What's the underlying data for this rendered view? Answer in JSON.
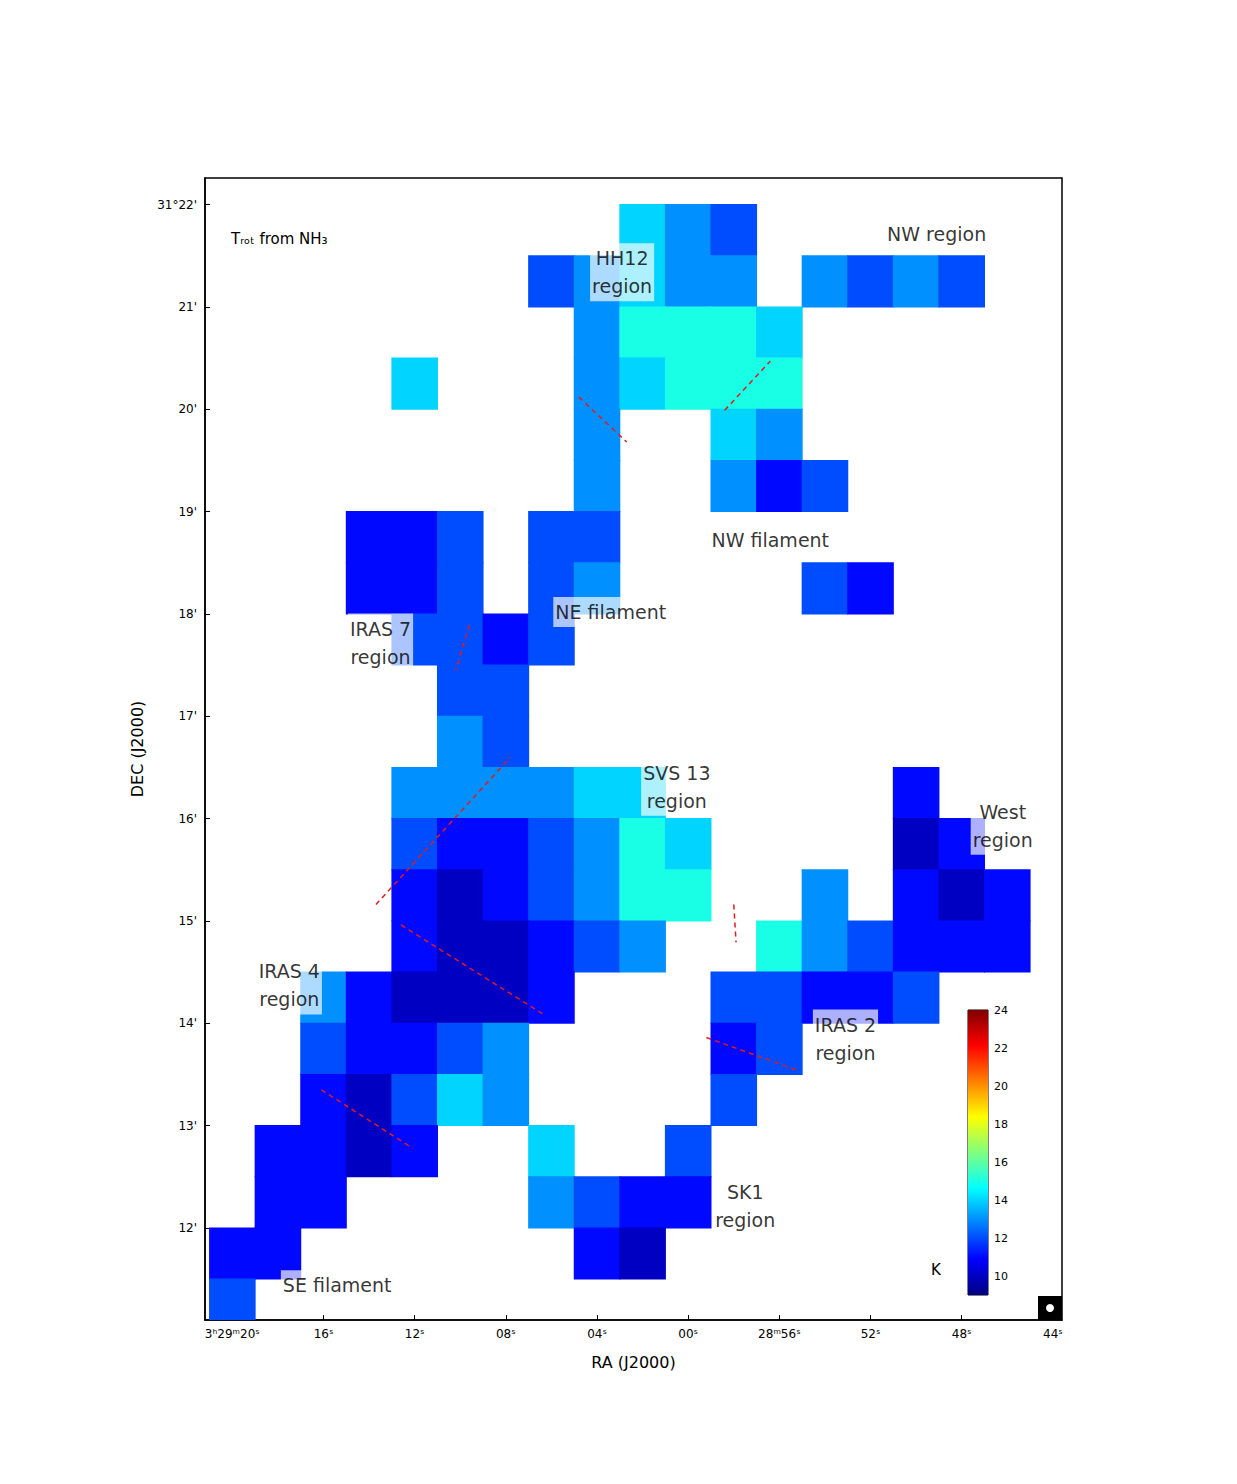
{
  "chart_data": {
    "type": "heatmap",
    "title": "Tᵣₒₜ from NH₃",
    "x_label": "RA (J2000)",
    "y_label": "DEC (J2000)",
    "xlim": [
      81.2,
      43.6
    ],
    "ylim": [
      11.1,
      22.26
    ],
    "xticks": [
      {
        "value": 80,
        "label": "3ʰ29ᵐ20ˢ"
      },
      {
        "value": 76,
        "label": "16ˢ"
      },
      {
        "value": 72,
        "label": "12ˢ"
      },
      {
        "value": 68,
        "label": "08ˢ"
      },
      {
        "value": 64,
        "label": "04ˢ"
      },
      {
        "value": 60,
        "label": "00ˢ"
      },
      {
        "value": 56,
        "label": "28ᵐ56ˢ"
      },
      {
        "value": 52,
        "label": "52ˢ"
      },
      {
        "value": 48,
        "label": "48ˢ"
      },
      {
        "value": 44,
        "label": "44ˢ"
      }
    ],
    "yticks": [
      {
        "value": 12,
        "label": "12'"
      },
      {
        "value": 13,
        "label": "13'"
      },
      {
        "value": 14,
        "label": "14'"
      },
      {
        "value": 15,
        "label": "15'"
      },
      {
        "value": 16,
        "label": "16'"
      },
      {
        "value": 17,
        "label": "17'"
      },
      {
        "value": 18,
        "label": "18'"
      },
      {
        "value": 19,
        "label": "19'"
      },
      {
        "value": 20,
        "label": "20'"
      },
      {
        "value": 21,
        "label": "21'"
      },
      {
        "value": 22,
        "label": "31°22'"
      }
    ],
    "cells": {
      "x": [
        80,
        78,
        76,
        74,
        72,
        70,
        68,
        66,
        64,
        62,
        60,
        58,
        56,
        54,
        52,
        50,
        48,
        46,
        44
      ],
      "y": [
        21.75,
        21.25,
        20.75,
        20.25,
        19.75,
        19.25,
        18.75,
        18.25,
        17.75,
        17.25,
        16.75,
        16.25,
        15.75,
        15.25,
        14.75,
        14.25,
        13.75,
        13.25,
        12.75,
        12.25,
        11.75,
        11.25
      ],
      "values": [
        [
          null,
          null,
          null,
          null,
          null,
          null,
          null,
          null,
          null,
          14,
          13,
          12,
          null,
          null,
          null,
          null,
          null,
          null,
          null
        ],
        [
          null,
          null,
          null,
          null,
          null,
          null,
          null,
          12,
          13,
          14,
          13,
          13,
          null,
          13,
          12,
          13,
          12,
          null,
          null
        ],
        [
          null,
          null,
          null,
          null,
          null,
          null,
          null,
          null,
          13,
          15,
          15,
          15,
          14,
          null,
          null,
          null,
          null,
          null,
          null
        ],
        [
          null,
          null,
          null,
          null,
          14,
          null,
          null,
          null,
          13,
          14,
          15,
          15,
          15,
          null,
          null,
          null,
          null,
          null,
          null
        ],
        [
          null,
          null,
          null,
          null,
          null,
          null,
          null,
          null,
          13,
          null,
          null,
          14,
          13,
          null,
          null,
          null,
          null,
          null,
          null
        ],
        [
          null,
          null,
          null,
          null,
          null,
          null,
          null,
          null,
          13,
          null,
          null,
          13,
          11,
          12,
          null,
          null,
          null,
          null,
          null
        ],
        [
          null,
          null,
          null,
          11,
          11,
          12,
          null,
          12,
          12,
          null,
          null,
          null,
          null,
          null,
          null,
          null,
          null,
          null,
          null
        ],
        [
          null,
          null,
          null,
          11,
          11,
          12,
          null,
          12,
          13,
          null,
          null,
          null,
          null,
          12,
          11,
          null,
          null,
          null,
          null
        ],
        [
          null,
          null,
          null,
          null,
          12,
          12,
          11,
          12,
          null,
          null,
          null,
          null,
          null,
          null,
          null,
          null,
          null,
          null,
          null
        ],
        [
          null,
          null,
          null,
          null,
          null,
          12,
          12,
          null,
          null,
          null,
          null,
          null,
          null,
          null,
          null,
          null,
          null,
          null,
          null
        ],
        [
          null,
          null,
          null,
          null,
          null,
          13,
          12,
          null,
          null,
          null,
          null,
          null,
          null,
          null,
          null,
          null,
          null,
          null,
          null
        ],
        [
          null,
          null,
          null,
          null,
          13,
          13,
          13,
          13,
          14,
          14,
          null,
          null,
          null,
          null,
          null,
          11,
          null,
          null,
          null
        ],
        [
          null,
          null,
          null,
          null,
          12,
          11,
          11,
          12,
          13,
          15,
          14,
          null,
          null,
          null,
          null,
          10,
          11,
          null,
          null
        ],
        [
          null,
          null,
          null,
          null,
          11,
          10,
          11,
          12,
          13,
          15,
          15,
          null,
          null,
          13,
          null,
          11,
          10,
          11,
          null
        ],
        [
          null,
          null,
          null,
          null,
          11,
          10,
          10,
          11,
          12,
          13,
          null,
          null,
          15,
          13,
          12,
          11,
          11,
          11,
          null
        ],
        [
          null,
          null,
          13,
          11,
          10,
          10,
          10,
          11,
          null,
          null,
          null,
          12,
          12,
          11,
          11,
          12,
          null,
          null,
          null
        ],
        [
          null,
          null,
          12,
          11,
          11,
          12,
          13,
          null,
          null,
          null,
          null,
          11,
          12,
          null,
          null,
          null,
          null,
          null,
          null
        ],
        [
          null,
          null,
          11,
          10,
          12,
          14,
          13,
          null,
          null,
          null,
          null,
          12,
          null,
          null,
          null,
          null,
          null,
          null,
          null
        ],
        [
          null,
          11,
          11,
          10,
          11,
          null,
          null,
          14,
          null,
          null,
          12,
          null,
          null,
          null,
          null,
          null,
          null,
          null,
          null
        ],
        [
          null,
          11,
          11,
          null,
          null,
          null,
          null,
          13,
          12,
          11,
          11,
          null,
          null,
          null,
          null,
          null,
          null,
          null,
          null
        ],
        [
          11,
          11,
          null,
          null,
          null,
          null,
          null,
          null,
          11,
          10,
          null,
          null,
          null,
          null,
          null,
          null,
          null,
          null,
          null
        ],
        [
          12,
          null,
          null,
          null,
          null,
          null,
          null,
          null,
          null,
          null,
          null,
          null,
          null,
          null,
          null,
          null,
          null,
          null,
          null
        ]
      ]
    },
    "colorbar": {
      "label": "K",
      "range": [
        9,
        24
      ],
      "ticks": [
        10,
        12,
        14,
        16,
        18,
        20,
        22,
        24
      ]
    },
    "region_labels": [
      {
        "text": "NW region",
        "x": 49.1,
        "y": 21.71
      },
      {
        "text": "HH12\nregion",
        "x": 62.9,
        "y": 21.34
      },
      {
        "text": "NW filament",
        "x": 56.4,
        "y": 18.72
      },
      {
        "text": "NE filament",
        "x": 63.4,
        "y": 18.02
      },
      {
        "text": "IRAS 7\nregion",
        "x": 73.5,
        "y": 17.72
      },
      {
        "text": "SVS 13\nregion",
        "x": 60.5,
        "y": 16.31
      },
      {
        "text": "West\nregion",
        "x": 46.2,
        "y": 15.93
      },
      {
        "text": "IRAS 4\nregion",
        "x": 77.5,
        "y": 14.37
      },
      {
        "text": "IRAS 2\nregion",
        "x": 53.1,
        "y": 13.85
      },
      {
        "text": "SK1\nregion",
        "x": 57.5,
        "y": 12.21
      },
      {
        "text": "SE filament",
        "x": 75.4,
        "y": 11.44
      }
    ],
    "boundaries": [
      [
        [
          64.8,
          20.12
        ],
        [
          62.7,
          19.68
        ]
      ],
      [
        [
          58.4,
          19.99
        ],
        [
          56.4,
          20.47
        ]
      ],
      [
        [
          69.6,
          17.89
        ],
        [
          70.2,
          17.45
        ]
      ],
      [
        [
          73.7,
          15.16
        ],
        [
          67.8,
          16.6
        ]
      ],
      [
        [
          72.6,
          14.96
        ],
        [
          66.3,
          14.08
        ]
      ],
      [
        [
          76.1,
          13.35
        ],
        [
          72.1,
          12.78
        ]
      ],
      [
        [
          58.0,
          15.16
        ],
        [
          57.9,
          14.79
        ]
      ],
      [
        [
          59.2,
          13.86
        ],
        [
          55.2,
          13.54
        ]
      ]
    ]
  }
}
